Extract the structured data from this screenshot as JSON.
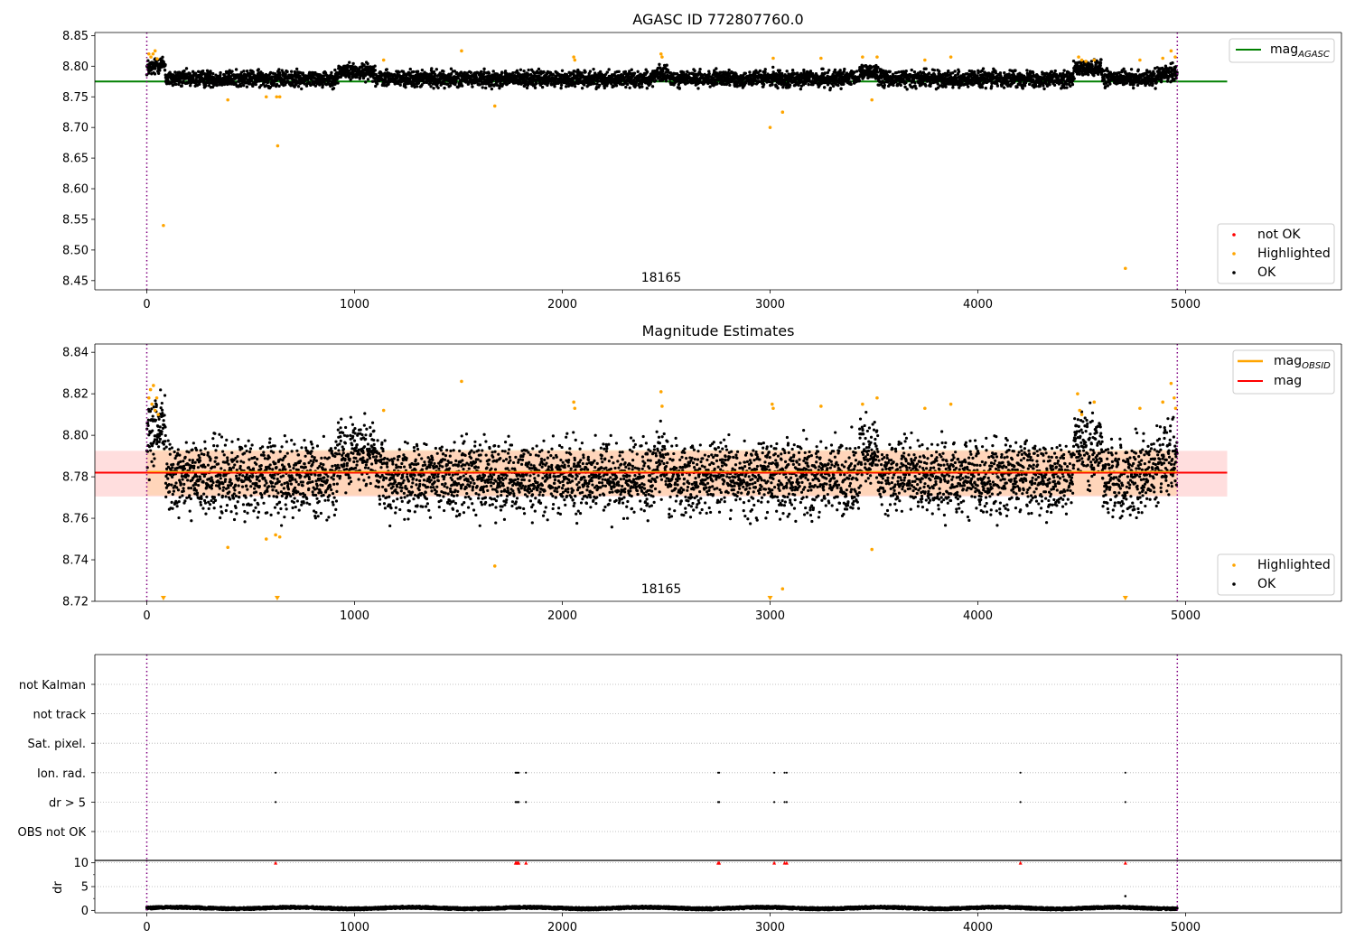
{
  "chart_data": [
    {
      "type": "scatter",
      "title": "AGASC ID 772807760.0",
      "xlim": [
        -250,
        5750
      ],
      "ylim": [
        8.435,
        8.855
      ],
      "xticks": [
        0,
        1000,
        2000,
        3000,
        4000,
        5000
      ],
      "yticks": [
        8.45,
        8.5,
        8.55,
        8.6,
        8.65,
        8.7,
        8.75,
        8.8,
        8.85
      ],
      "ytick_decimals": 2,
      "vlines": [
        0,
        4960
      ],
      "annotation": {
        "text": "18165",
        "x": 2480
      },
      "hlines": [
        {
          "name": "mag_AGASC",
          "y": 8.775,
          "x0": -250,
          "x1": 5200,
          "color": "#008000"
        }
      ],
      "series": [
        {
          "name": "OK",
          "color": "#000000",
          "n_points": 4950,
          "x_range": [
            0,
            4960
          ],
          "typical_y": 8.78
        },
        {
          "name": "Highlighted",
          "color": "#ffa500",
          "points": [
            [
              10,
              8.82
            ],
            [
              20,
              8.815
            ],
            [
              30,
              8.82
            ],
            [
              40,
              8.825
            ],
            [
              50,
              8.812
            ],
            [
              80,
              8.54
            ],
            [
              390,
              8.745
            ],
            [
              575,
              8.75
            ],
            [
              625,
              8.75
            ],
            [
              630,
              8.67
            ],
            [
              640,
              8.75
            ],
            [
              1140,
              8.81
            ],
            [
              1515,
              8.825
            ],
            [
              1675,
              8.735
            ],
            [
              2055,
              8.815
            ],
            [
              2060,
              8.81
            ],
            [
              2475,
              8.82
            ],
            [
              2480,
              8.815
            ],
            [
              3000,
              8.7
            ],
            [
              3015,
              8.813
            ],
            [
              3060,
              8.725
            ],
            [
              3245,
              8.813
            ],
            [
              3445,
              8.815
            ],
            [
              3490,
              8.745
            ],
            [
              3515,
              8.815
            ],
            [
              3745,
              8.81
            ],
            [
              3870,
              8.815
            ],
            [
              4485,
              8.815
            ],
            [
              4500,
              8.81
            ],
            [
              4520,
              8.808
            ],
            [
              4560,
              8.81
            ],
            [
              4710,
              8.47
            ],
            [
              4780,
              8.81
            ],
            [
              4890,
              8.813
            ],
            [
              4930,
              8.825
            ],
            [
              4950,
              8.815
            ]
          ]
        },
        {
          "name": "not OK",
          "color": "#ff0000",
          "points": []
        }
      ],
      "legend": {
        "upper": [
          "mag_AGASC"
        ],
        "lower": [
          "not OK",
          "Highlighted",
          "OK"
        ]
      }
    },
    {
      "type": "scatter",
      "title": "Magnitude Estimates",
      "xlim": [
        -250,
        5750
      ],
      "ylim": [
        8.72,
        8.844
      ],
      "xticks": [
        0,
        1000,
        2000,
        3000,
        4000,
        5000
      ],
      "yticks": [
        8.72,
        8.74,
        8.76,
        8.78,
        8.8,
        8.82,
        8.84
      ],
      "ytick_decimals": 2,
      "vlines": [
        0,
        4960
      ],
      "annotation": {
        "text": "18165",
        "x": 2480
      },
      "hlines": [
        {
          "name": "mag",
          "y": 8.782,
          "x0": -250,
          "x1": 5200,
          "color": "#ff0000"
        },
        {
          "name": "mag_OBSID",
          "y": 8.7825,
          "x0": 0,
          "x1": 4960,
          "color": "#ffa500"
        }
      ],
      "bands": [
        {
          "name": "mag band",
          "y0": 8.7705,
          "y1": 8.7925,
          "x0": -250,
          "x1": 5200,
          "color": "#ff0000",
          "opacity": 0.13
        },
        {
          "name": "mag_OBSID band",
          "y0": 8.771,
          "y1": 8.793,
          "x0": 0,
          "x1": 4960,
          "color": "#ffa500",
          "opacity": 0.16
        }
      ],
      "series": [
        {
          "name": "OK",
          "color": "#000000",
          "n_points": 4950,
          "x_range": [
            0,
            4960
          ],
          "typical_y": 8.78
        },
        {
          "name": "Highlighted",
          "color": "#ffa500",
          "points": [
            [
              10,
              8.818
            ],
            [
              18,
              8.822
            ],
            [
              25,
              8.815
            ],
            [
              32,
              8.824
            ],
            [
              40,
              8.812
            ],
            [
              48,
              8.818
            ],
            [
              55,
              8.81
            ],
            [
              80,
              8.72
            ],
            [
              390,
              8.746
            ],
            [
              575,
              8.75
            ],
            [
              620,
              8.752
            ],
            [
              628,
              8.72
            ],
            [
              640,
              8.751
            ],
            [
              1140,
              8.812
            ],
            [
              1515,
              8.826
            ],
            [
              1675,
              8.737
            ],
            [
              2055,
              8.816
            ],
            [
              2060,
              8.813
            ],
            [
              2475,
              8.821
            ],
            [
              2480,
              8.814
            ],
            [
              3000,
              8.72
            ],
            [
              3010,
              8.815
            ],
            [
              3015,
              8.813
            ],
            [
              3060,
              8.726
            ],
            [
              3245,
              8.814
            ],
            [
              3445,
              8.815
            ],
            [
              3490,
              8.745
            ],
            [
              3515,
              8.818
            ],
            [
              3745,
              8.813
            ],
            [
              3870,
              8.815
            ],
            [
              4480,
              8.82
            ],
            [
              4490,
              8.812
            ],
            [
              4500,
              8.81
            ],
            [
              4560,
              8.816
            ],
            [
              4710,
              8.72
            ],
            [
              4780,
              8.813
            ],
            [
              4890,
              8.816
            ],
            [
              4930,
              8.825
            ],
            [
              4945,
              8.818
            ],
            [
              4952,
              8.813
            ]
          ]
        }
      ],
      "legend": {
        "upper": [
          "mag_OBSID",
          "mag"
        ],
        "lower": [
          "Highlighted",
          "OK"
        ]
      }
    },
    {
      "type": "scatter",
      "title": "",
      "xlim": [
        -250,
        5750
      ],
      "categories": [
        "not Kalman",
        "not track",
        "Sat. pixel.",
        "Ion. rad.",
        "dr > 5",
        "OBS not OK"
      ],
      "vlines": [
        0,
        4960
      ],
      "series": [
        {
          "name": "Ion. rad.",
          "color": "#000000",
          "points": [
            [
              620,
              1
            ],
            [
              1775,
              1
            ],
            [
              1780,
              1
            ],
            [
              1785,
              1
            ],
            [
              1790,
              1
            ],
            [
              1825,
              1
            ],
            [
              2750,
              1
            ],
            [
              2755,
              1
            ],
            [
              3020,
              1
            ],
            [
              3070,
              1
            ],
            [
              3080,
              1
            ],
            [
              4205,
              1
            ],
            [
              4710,
              1
            ]
          ]
        },
        {
          "name": "dr > 5",
          "color": "#000000",
          "points": [
            [
              620,
              1
            ],
            [
              1775,
              1
            ],
            [
              1780,
              1
            ],
            [
              1785,
              1
            ],
            [
              1790,
              1
            ],
            [
              1825,
              1
            ],
            [
              2750,
              1
            ],
            [
              2755,
              1
            ],
            [
              3020,
              1
            ],
            [
              3070,
              1
            ],
            [
              3080,
              1
            ],
            [
              4205,
              1
            ],
            [
              4710,
              1
            ]
          ]
        }
      ]
    },
    {
      "type": "scatter",
      "title": "",
      "ylabel": "dr",
      "xlim": [
        -250,
        5750
      ],
      "ylim": [
        -0.5,
        10.5
      ],
      "xticks": [
        0,
        1000,
        2000,
        3000,
        4000,
        5000
      ],
      "yticks": [
        0,
        5,
        10
      ],
      "ytick_decimals": 0,
      "vlines": [
        0,
        4960
      ],
      "series": [
        {
          "name": "dr",
          "color": "#000000",
          "n_points": 4950,
          "x_range": [
            0,
            4960
          ],
          "typical_y": 0.5,
          "outliers": [
            [
              4710,
              3.0
            ]
          ]
        },
        {
          "name": "dr clipped",
          "color": "#ff0000",
          "points": [
            [
              620,
              10
            ],
            [
              1775,
              10
            ],
            [
              1780,
              10
            ],
            [
              1785,
              10
            ],
            [
              1790,
              10
            ],
            [
              1825,
              10
            ],
            [
              2750,
              10
            ],
            [
              2755,
              10
            ],
            [
              3020,
              10
            ],
            [
              3070,
              10
            ],
            [
              3080,
              10
            ],
            [
              4205,
              10
            ],
            [
              4710,
              10
            ]
          ]
        }
      ]
    }
  ]
}
